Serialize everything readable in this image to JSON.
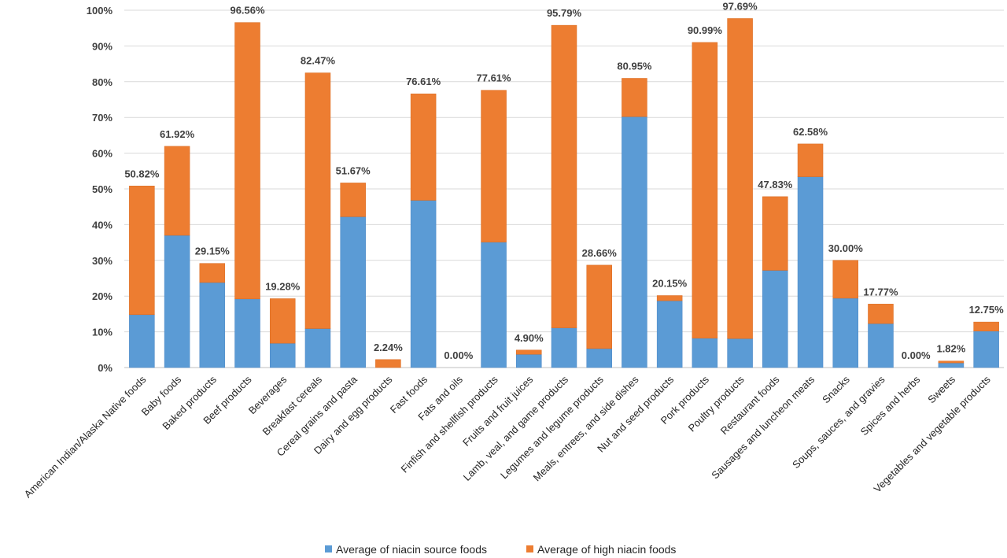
{
  "chart_data": {
    "type": "bar",
    "stacked": true,
    "categories": [
      "American Indian/Alaska Native foods",
      "Baby foods",
      "Baked products",
      "Beef products",
      "Beverages",
      "Breakfast cereals",
      "Cereal grains and pasta",
      "Dairy and egg products",
      "Fast foods",
      "Fats and oils",
      "Finfish and shellfish products",
      "Fruits and fruit juices",
      "Lamb, veal, and game products",
      "Legumes and legume products",
      "Meals, entrees, and side dishes",
      "Nut and seed products",
      "Pork products",
      "Poultry products",
      "Restaurant foods",
      "Sausages and luncheon meats",
      "Snacks",
      "Soups, sauces, and gravies",
      "Spices and herbs",
      "Sweets",
      "Vegetables and vegetable products"
    ],
    "series": [
      {
        "name": "Average of niacin source foods",
        "color": "#5B9BD5",
        "values": [
          14.8,
          37.0,
          23.8,
          19.2,
          6.8,
          10.9,
          42.2,
          0.0,
          46.8,
          0.0,
          35.1,
          3.7,
          11.1,
          5.3,
          70.2,
          18.7,
          8.2,
          8.1,
          27.2,
          53.4,
          19.4,
          12.3,
          0.0,
          1.3,
          10.2
        ]
      },
      {
        "name": "Average of high niacin foods",
        "color": "#ED7D31",
        "values": [
          36.02,
          24.92,
          5.35,
          77.36,
          12.48,
          71.57,
          9.47,
          2.24,
          29.81,
          0.0,
          42.51,
          1.2,
          84.69,
          23.36,
          10.75,
          1.45,
          82.79,
          89.59,
          20.63,
          9.18,
          10.6,
          5.47,
          0.0,
          0.52,
          2.55
        ]
      }
    ],
    "data_labels": [
      "50.82%",
      "61.92%",
      "29.15%",
      "96.56%",
      "19.28%",
      "82.47%",
      "51.67%",
      "2.24%",
      "76.61%",
      "0.00%",
      "77.61%",
      "4.90%",
      "95.79%",
      "28.66%",
      "80.95%",
      "20.15%",
      "90.99%",
      "97.69%",
      "47.83%",
      "62.58%",
      "30.00%",
      "17.77%",
      "0.00%",
      "1.82%",
      "12.75%"
    ],
    "totals": [
      50.82,
      61.92,
      29.15,
      96.56,
      19.28,
      82.47,
      51.67,
      2.24,
      76.61,
      0.0,
      77.61,
      4.9,
      95.79,
      28.66,
      80.95,
      20.15,
      90.99,
      97.69,
      47.83,
      62.58,
      30.0,
      17.77,
      0.0,
      1.82,
      12.75
    ],
    "y_ticks": [
      "0%",
      "10%",
      "20%",
      "30%",
      "40%",
      "50%",
      "60%",
      "70%",
      "80%",
      "90%",
      "100%"
    ],
    "ylim": [
      0,
      100
    ],
    "grid": true,
    "legend_position": "bottom",
    "title": "",
    "xlabel": "",
    "ylabel": ""
  }
}
